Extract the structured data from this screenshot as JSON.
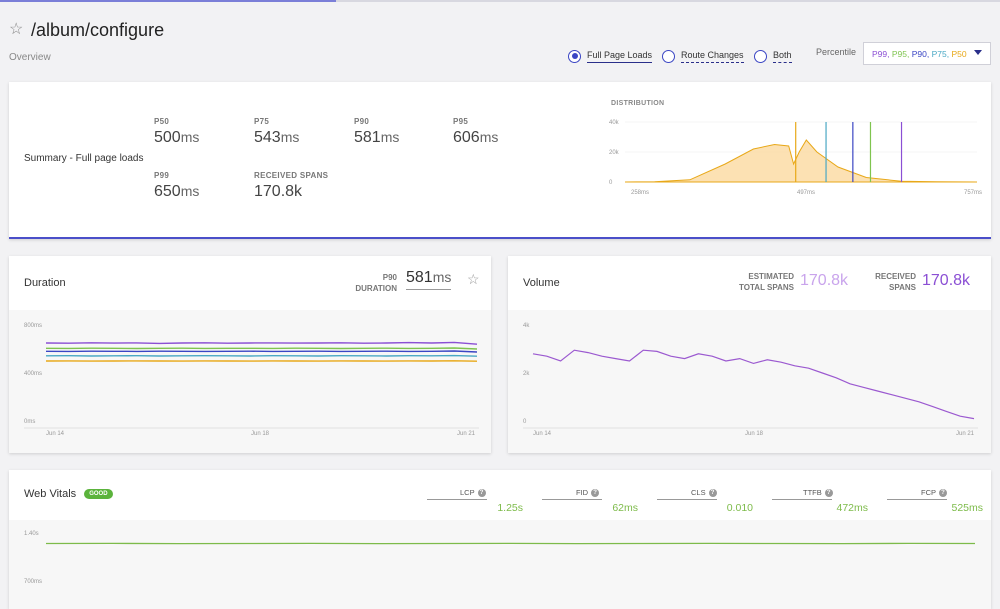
{
  "header": {
    "title": "/album/configure",
    "breadcrumb": "Overview",
    "filters": [
      {
        "label": "Full Page Loads",
        "selected": true
      },
      {
        "label": "Route Changes",
        "selected": false
      },
      {
        "label": "Both",
        "selected": false
      }
    ],
    "percentile_label": "Percentile",
    "percentile_options": [
      {
        "text": "P99,",
        "color": "#8b4fd4"
      },
      {
        "text": "P95,",
        "color": "#7fc44f"
      },
      {
        "text": "P90,",
        "color": "#3b46c4"
      },
      {
        "text": "P75,",
        "color": "#4aa8c4"
      },
      {
        "text": "P50",
        "color": "#e8a818"
      }
    ]
  },
  "summary": {
    "title": "Summary - Full page loads",
    "metrics": [
      {
        "label": "P50",
        "value": "500",
        "unit": "ms"
      },
      {
        "label": "P75",
        "value": "543",
        "unit": "ms"
      },
      {
        "label": "P90",
        "value": "581",
        "unit": "ms"
      },
      {
        "label": "P95",
        "value": "606",
        "unit": "ms"
      },
      {
        "label": "P99",
        "value": "650",
        "unit": "ms"
      },
      {
        "label": "RECEIVED SPANS",
        "value": "170.8k",
        "unit": ""
      }
    ],
    "distribution": {
      "title": "DISTRIBUTION",
      "y_ticks": [
        "40k",
        "20k",
        "0"
      ],
      "x_ticks": [
        "258ms",
        "497ms",
        "757ms"
      ]
    }
  },
  "duration": {
    "title": "Duration",
    "stat_label_1": "P90",
    "stat_label_2": "DURATION",
    "stat_value": "581",
    "stat_unit": "ms",
    "y_ticks": [
      "800ms",
      "400ms",
      "0ms"
    ],
    "x_ticks": [
      "Jun 14",
      "Jun 18",
      "Jun 21"
    ]
  },
  "volume": {
    "title": "Volume",
    "est_label_1": "ESTIMATED",
    "est_label_2": "TOTAL SPANS",
    "est_value": "170.8k",
    "rec_label_1": "RECEIVED",
    "rec_label_2": "SPANS",
    "rec_value": "170.8k",
    "y_ticks": [
      "4k",
      "2k",
      "0"
    ],
    "x_ticks": [
      "Jun 14",
      "Jun 18",
      "Jun 21"
    ]
  },
  "web_vitals": {
    "title": "Web Vitals",
    "badge": "GOOD",
    "vitals": [
      {
        "label": "LCP",
        "value": "1.25s",
        "selected": true
      },
      {
        "label": "FID",
        "value": "62ms",
        "selected": false
      },
      {
        "label": "CLS",
        "value": "0.010",
        "selected": false
      },
      {
        "label": "TTFB",
        "value": "472ms",
        "selected": false
      },
      {
        "label": "FCP",
        "value": "525ms",
        "selected": false
      }
    ],
    "y_ticks": [
      "1.40s",
      "700ms"
    ]
  },
  "chart_data": [
    {
      "type": "area",
      "title": "DISTRIBUTION",
      "x": [
        258,
        300,
        350,
        400,
        440,
        470,
        490,
        497,
        505,
        515,
        530,
        560,
        600,
        650,
        700,
        757
      ],
      "values": [
        0,
        200,
        1500,
        12000,
        22000,
        25000,
        24000,
        12000,
        20000,
        28000,
        20000,
        10000,
        3000,
        500,
        100,
        0
      ],
      "ylim": [
        0,
        40000
      ],
      "markers": [
        {
          "name": "P50",
          "x": 500,
          "color": "#e8a818"
        },
        {
          "name": "P75",
          "x": 543,
          "color": "#4aa8c4"
        },
        {
          "name": "P90",
          "x": 581,
          "color": "#3b46c4"
        },
        {
          "name": "P95",
          "x": 606,
          "color": "#7fc44f"
        },
        {
          "name": "P99",
          "x": 650,
          "color": "#8b4fd4"
        }
      ]
    },
    {
      "type": "line",
      "title": "Duration",
      "x_ticks": [
        "Jun 14",
        "Jun 18",
        "Jun 21"
      ],
      "ylim": [
        0,
        800
      ],
      "series": [
        {
          "name": "P99",
          "color": "#8b4fd4",
          "values": [
            650,
            648,
            652,
            649,
            651,
            647,
            650,
            652,
            648,
            650,
            651,
            649,
            650,
            652,
            648,
            650,
            653,
            650,
            655,
            640
          ]
        },
        {
          "name": "P95",
          "color": "#7fc44f",
          "values": [
            606,
            605,
            607,
            606,
            604,
            606,
            607,
            605,
            606,
            606,
            605,
            607,
            606,
            604,
            606,
            607,
            605,
            606,
            608,
            600
          ]
        },
        {
          "name": "P90",
          "color": "#3b46c4",
          "values": [
            581,
            580,
            582,
            581,
            580,
            582,
            581,
            580,
            581,
            582,
            580,
            581,
            582,
            580,
            581,
            582,
            580,
            581,
            583,
            575
          ]
        },
        {
          "name": "P75",
          "color": "#4aa8c4",
          "values": [
            543,
            544,
            542,
            543,
            544,
            542,
            543,
            544,
            543,
            542,
            544,
            543,
            542,
            544,
            543,
            542,
            544,
            543,
            545,
            540
          ]
        },
        {
          "name": "P50",
          "color": "#e8a818",
          "values": [
            500,
            501,
            499,
            500,
            501,
            500,
            499,
            501,
            500,
            499,
            501,
            500,
            499,
            501,
            500,
            499,
            501,
            500,
            502,
            498
          ]
        }
      ]
    },
    {
      "type": "line",
      "title": "Volume",
      "x_ticks": [
        "Jun 14",
        "Jun 18",
        "Jun 21"
      ],
      "ylim": [
        0,
        4000
      ],
      "series": [
        {
          "name": "Volume",
          "color": "#9b59d0",
          "values": [
            2800,
            2700,
            2500,
            2950,
            2850,
            2700,
            2600,
            2500,
            2950,
            2900,
            2700,
            2600,
            2800,
            2700,
            2500,
            2600,
            2400,
            2550,
            2450,
            2300,
            2200,
            2000,
            1800,
            1550,
            1400,
            1250,
            1100,
            950,
            800,
            600,
            400,
            200,
            100
          ]
        }
      ]
    },
    {
      "type": "line",
      "title": "Web Vitals - LCP",
      "ylim": [
        0,
        1400
      ],
      "series": [
        {
          "name": "LCP",
          "color": "#7dbb4a",
          "values": [
            1250,
            1252,
            1248,
            1250,
            1251,
            1249,
            1250,
            1252,
            1248,
            1250,
            1251,
            1250,
            1249,
            1251,
            1250
          ]
        }
      ]
    }
  ]
}
